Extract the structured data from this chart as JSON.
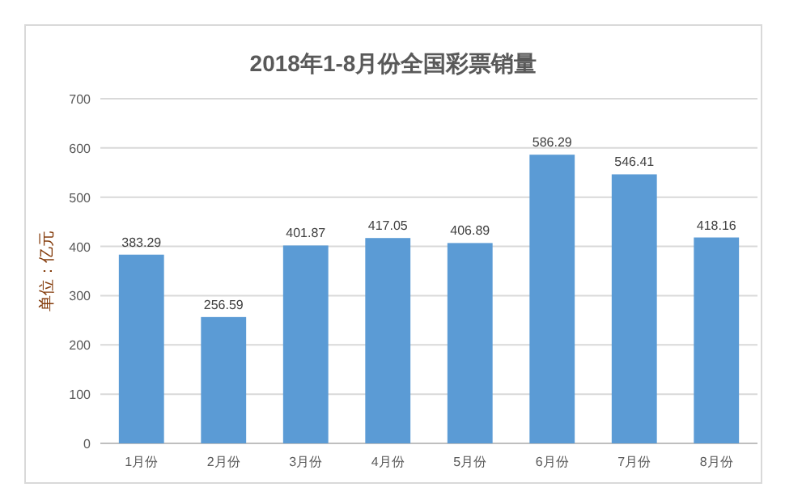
{
  "chart_data": {
    "type": "bar",
    "title": "2018年1-8月份全国彩票销量",
    "ylabel": "单位：亿元",
    "categories": [
      "1月份",
      "2月份",
      "3月份",
      "4月份",
      "5月份",
      "6月份",
      "7月份",
      "8月份"
    ],
    "values": [
      383.29,
      256.59,
      401.87,
      417.05,
      406.89,
      586.29,
      546.41,
      418.16
    ],
    "color": "#5b9bd5",
    "ylim": [
      0,
      700
    ],
    "yticks": [
      0,
      100,
      200,
      300,
      400,
      500,
      600,
      700
    ],
    "grid": "y",
    "data_labels": true
  }
}
